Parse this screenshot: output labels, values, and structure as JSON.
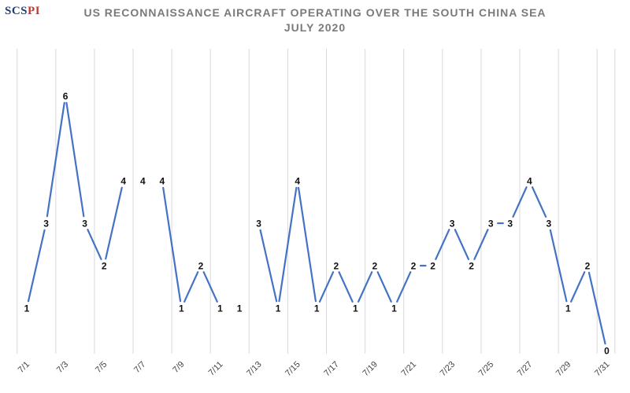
{
  "logo": {
    "text_main": "SCS",
    "text_accent": "PI"
  },
  "chart_data": {
    "type": "line",
    "title": "US RECONNAISSANCE AIRCRAFT OPERATING OVER THE SOUTH CHINA SEA",
    "subtitle": "JULY 2020",
    "xlabel": "",
    "ylabel": "",
    "ylim": [
      0,
      6
    ],
    "grid": "vertical",
    "legend": "none",
    "line_color": "#4472c4",
    "grid_color": "#d9d9d9",
    "x": [
      "7/1",
      "7/2",
      "7/3",
      "7/4",
      "7/5",
      "7/6",
      "7/7",
      "7/8",
      "7/9",
      "7/10",
      "7/11",
      "7/12",
      "7/13",
      "7/14",
      "7/15",
      "7/16",
      "7/17",
      "7/18",
      "7/19",
      "7/20",
      "7/21",
      "7/22",
      "7/23",
      "7/24",
      "7/25",
      "7/26",
      "7/27",
      "7/28",
      "7/29",
      "7/30",
      "7/31"
    ],
    "x_tick_labels": [
      "7/1",
      "7/3",
      "7/5",
      "7/7",
      "7/9",
      "7/11",
      "7/13",
      "7/15",
      "7/17",
      "7/19",
      "7/21",
      "7/23",
      "7/25",
      "7/27",
      "7/29",
      "7/31"
    ],
    "series": [
      {
        "values": [
          1,
          3,
          6,
          3,
          2,
          4,
          null,
          4,
          1,
          2,
          1,
          null,
          3,
          1,
          4,
          1,
          2,
          1,
          2,
          1,
          2,
          2,
          3,
          2,
          3,
          3,
          4,
          3,
          1,
          2,
          0
        ]
      }
    ],
    "annotations": [
      {
        "x": "7/7",
        "label": "4"
      },
      {
        "x": "7/12",
        "label": "1"
      }
    ]
  }
}
